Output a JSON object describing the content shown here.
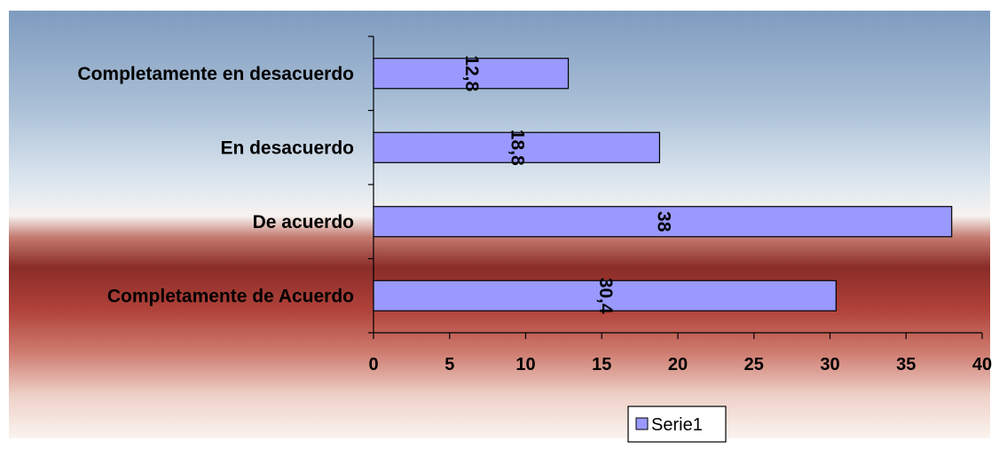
{
  "chart_data": {
    "type": "bar",
    "orientation": "horizontal",
    "categories": [
      "Completamente de Acuerdo",
      "De acuerdo",
      "En desacuerdo",
      "Completamente en desacuerdo"
    ],
    "series": [
      {
        "name": "Serie1",
        "values": [
          30.4,
          38,
          18.8,
          12.8
        ],
        "data_labels": [
          "30,4",
          "38",
          "18,8",
          "12,8"
        ],
        "color": "#9999ff"
      }
    ],
    "xlim": [
      0,
      40
    ],
    "x_ticks": [
      0,
      5,
      10,
      15,
      20,
      25,
      30,
      35,
      40
    ],
    "grid": false,
    "legend_position": "bottom",
    "data_label_rotation": "vertical"
  }
}
